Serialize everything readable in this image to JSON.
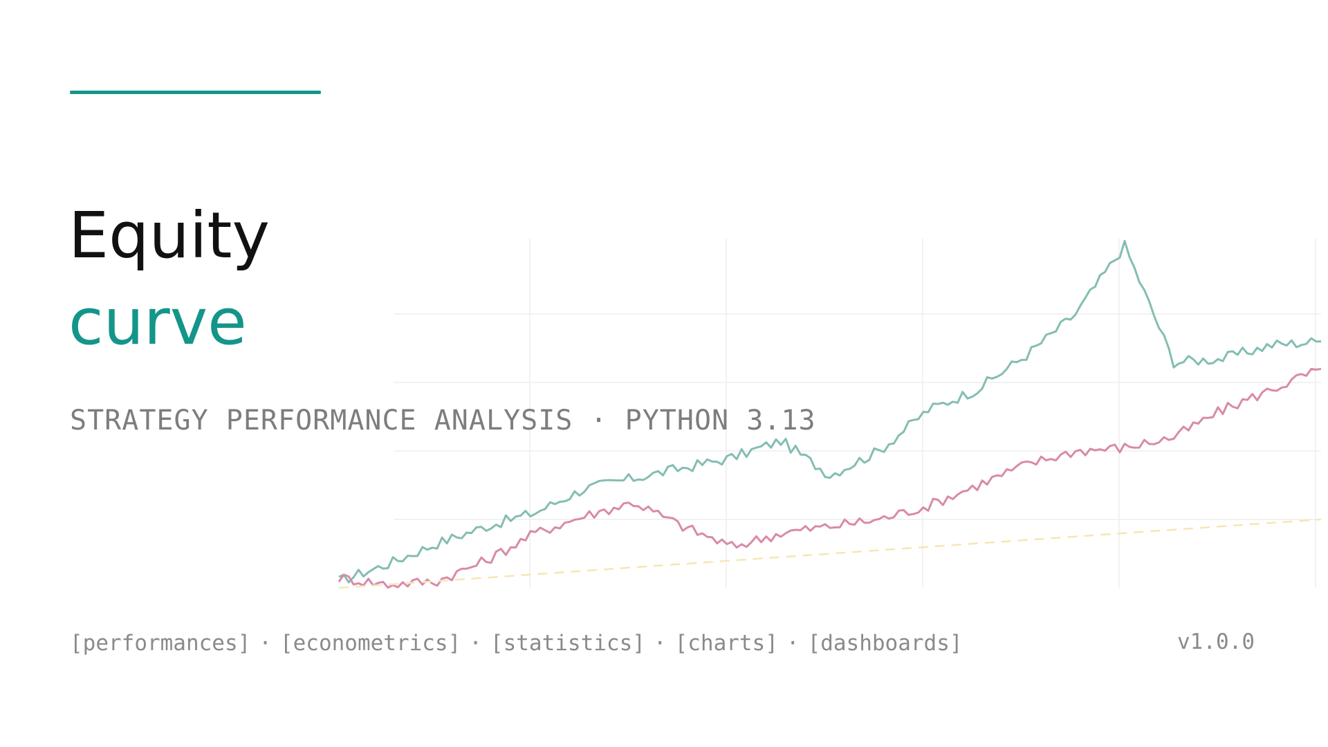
{
  "colors": {
    "accent": "#13958a",
    "strategy_line": "#84bdb2",
    "benchmark_line": "#d98aa8",
    "baseline_line": "#f6e6b5",
    "grid": "#eeeeee",
    "text_muted": "#7d7d7d"
  },
  "hero": {
    "title_primary": "Equity",
    "title_secondary": "curve",
    "subtitle": "STRATEGY PERFORMANCE ANALYSIS · PYTHON 3.13"
  },
  "footer": {
    "tags": [
      "[performances]",
      "[econometrics]",
      "[statistics]",
      "[charts]",
      "[dashboards]"
    ],
    "separator": "·",
    "version": "v1.0.0"
  },
  "chart_data": {
    "type": "line",
    "grid": true,
    "legend": "none",
    "title": "",
    "xlabel": "",
    "ylabel": "",
    "x": [
      0,
      5,
      10,
      15,
      20,
      25,
      30,
      35,
      40,
      45,
      50,
      55,
      60,
      65,
      70,
      75,
      80,
      85,
      90,
      95,
      100
    ],
    "xlim": [
      0,
      100
    ],
    "ylim": [
      0,
      100
    ],
    "series": [
      {
        "key": "strategy",
        "color": "#84bdb2",
        "values": [
          2,
          7,
          13,
          18,
          22,
          29,
          32,
          35,
          38,
          43,
          33,
          40,
          52,
          58,
          68,
          80,
          100,
          66,
          67,
          71,
          72
        ]
      },
      {
        "key": "benchmark",
        "color": "#d98aa8",
        "values": [
          3,
          1,
          2,
          8,
          16,
          21,
          25,
          18,
          12,
          16,
          18,
          20,
          24,
          30,
          36,
          40,
          41,
          44,
          52,
          58,
          64
        ]
      },
      {
        "key": "baseline",
        "color": "#f6e6b5",
        "dashed": true,
        "values": [
          0,
          1,
          2,
          3,
          4,
          5,
          6,
          7,
          8,
          9,
          10,
          11,
          12,
          13,
          14,
          15,
          16,
          17,
          18,
          19,
          20
        ]
      }
    ]
  }
}
